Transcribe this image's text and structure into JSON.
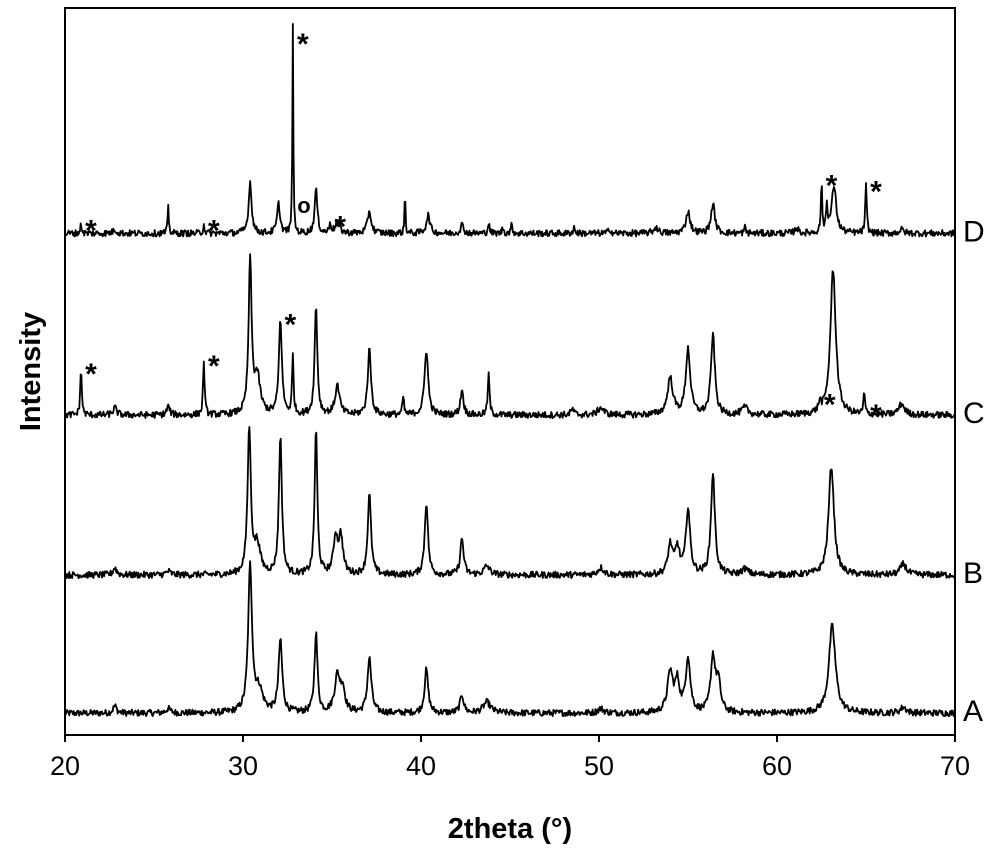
{
  "chart_data": {
    "type": "line",
    "xlabel": "2theta (°)",
    "ylabel": "Intensity",
    "xlim": [
      20,
      70
    ],
    "xticks": [
      20,
      30,
      40,
      50,
      60,
      70
    ],
    "y_ticks_shown": false,
    "grid": false,
    "legend": "none",
    "line_color": "#000000",
    "series": [
      {
        "name": "A",
        "baseline": 0.03,
        "peaks": [
          {
            "x": 22.8,
            "h": 0.01,
            "w": 0.12
          },
          {
            "x": 25.8,
            "h": 0.006,
            "w": 0.15
          },
          {
            "x": 30.4,
            "h": 0.2,
            "w": 0.13
          },
          {
            "x": 30.9,
            "h": 0.03,
            "w": 0.25
          },
          {
            "x": 32.1,
            "h": 0.1,
            "w": 0.12
          },
          {
            "x": 34.1,
            "h": 0.11,
            "w": 0.1
          },
          {
            "x": 35.3,
            "h": 0.05,
            "w": 0.18
          },
          {
            "x": 35.6,
            "h": 0.03,
            "w": 0.15
          },
          {
            "x": 37.1,
            "h": 0.075,
            "w": 0.13
          },
          {
            "x": 40.3,
            "h": 0.06,
            "w": 0.12
          },
          {
            "x": 42.3,
            "h": 0.025,
            "w": 0.12
          },
          {
            "x": 43.7,
            "h": 0.015,
            "w": 0.25
          },
          {
            "x": 50.1,
            "h": 0.006,
            "w": 0.2
          },
          {
            "x": 54.0,
            "h": 0.055,
            "w": 0.18
          },
          {
            "x": 54.4,
            "h": 0.04,
            "w": 0.15
          },
          {
            "x": 55.0,
            "h": 0.075,
            "w": 0.15
          },
          {
            "x": 56.4,
            "h": 0.075,
            "w": 0.15
          },
          {
            "x": 56.7,
            "h": 0.04,
            "w": 0.15
          },
          {
            "x": 63.1,
            "h": 0.12,
            "w": 0.22
          },
          {
            "x": 67.1,
            "h": 0.008,
            "w": 0.2
          }
        ]
      },
      {
        "name": "B",
        "baseline": 0.22,
        "peaks": [
          {
            "x": 22.8,
            "h": 0.01,
            "w": 0.12
          },
          {
            "x": 25.8,
            "h": 0.005,
            "w": 0.15
          },
          {
            "x": 30.35,
            "h": 0.2,
            "w": 0.11
          },
          {
            "x": 30.8,
            "h": 0.04,
            "w": 0.2
          },
          {
            "x": 32.1,
            "h": 0.19,
            "w": 0.1
          },
          {
            "x": 34.1,
            "h": 0.2,
            "w": 0.09
          },
          {
            "x": 35.2,
            "h": 0.05,
            "w": 0.14
          },
          {
            "x": 35.5,
            "h": 0.05,
            "w": 0.14
          },
          {
            "x": 37.1,
            "h": 0.11,
            "w": 0.11
          },
          {
            "x": 40.3,
            "h": 0.1,
            "w": 0.11
          },
          {
            "x": 42.3,
            "h": 0.05,
            "w": 0.11
          },
          {
            "x": 43.7,
            "h": 0.012,
            "w": 0.2
          },
          {
            "x": 50.1,
            "h": 0.01,
            "w": 0.2
          },
          {
            "x": 54.0,
            "h": 0.04,
            "w": 0.15
          },
          {
            "x": 54.4,
            "h": 0.035,
            "w": 0.15
          },
          {
            "x": 55.0,
            "h": 0.09,
            "w": 0.14
          },
          {
            "x": 56.4,
            "h": 0.14,
            "w": 0.13
          },
          {
            "x": 58.2,
            "h": 0.008,
            "w": 0.2
          },
          {
            "x": 63.05,
            "h": 0.15,
            "w": 0.18
          },
          {
            "x": 67.1,
            "h": 0.015,
            "w": 0.2
          }
        ]
      },
      {
        "name": "C",
        "baseline": 0.44,
        "peaks": [
          {
            "x": 20.9,
            "h": 0.065,
            "w": 0.05
          },
          {
            "x": 22.8,
            "h": 0.01,
            "w": 0.12
          },
          {
            "x": 25.8,
            "h": 0.012,
            "w": 0.1
          },
          {
            "x": 27.8,
            "h": 0.075,
            "w": 0.05
          },
          {
            "x": 30.4,
            "h": 0.21,
            "w": 0.1
          },
          {
            "x": 30.8,
            "h": 0.05,
            "w": 0.2
          },
          {
            "x": 32.1,
            "h": 0.13,
            "w": 0.1
          },
          {
            "x": 32.8,
            "h": 0.08,
            "w": 0.05
          },
          {
            "x": 34.1,
            "h": 0.15,
            "w": 0.09
          },
          {
            "x": 35.3,
            "h": 0.04,
            "w": 0.15
          },
          {
            "x": 37.1,
            "h": 0.09,
            "w": 0.11
          },
          {
            "x": 39.0,
            "h": 0.025,
            "w": 0.05
          },
          {
            "x": 40.3,
            "h": 0.09,
            "w": 0.12
          },
          {
            "x": 42.3,
            "h": 0.035,
            "w": 0.1
          },
          {
            "x": 43.8,
            "h": 0.055,
            "w": 0.06
          },
          {
            "x": 48.5,
            "h": 0.008,
            "w": 0.1
          },
          {
            "x": 50.1,
            "h": 0.01,
            "w": 0.2
          },
          {
            "x": 54.0,
            "h": 0.05,
            "w": 0.18
          },
          {
            "x": 55.0,
            "h": 0.09,
            "w": 0.15
          },
          {
            "x": 56.4,
            "h": 0.11,
            "w": 0.13
          },
          {
            "x": 58.2,
            "h": 0.01,
            "w": 0.2
          },
          {
            "x": 62.4,
            "h": 0.012,
            "w": 0.08
          },
          {
            "x": 63.15,
            "h": 0.2,
            "w": 0.18
          },
          {
            "x": 64.9,
            "h": 0.03,
            "w": 0.05
          },
          {
            "x": 67.0,
            "h": 0.015,
            "w": 0.2
          }
        ]
      },
      {
        "name": "D",
        "baseline": 0.69,
        "peaks": [
          {
            "x": 20.9,
            "h": 0.012,
            "w": 0.05
          },
          {
            "x": 22.8,
            "h": 0.005,
            "w": 0.12
          },
          {
            "x": 25.8,
            "h": 0.035,
            "w": 0.04
          },
          {
            "x": 27.8,
            "h": 0.012,
            "w": 0.05
          },
          {
            "x": 30.4,
            "h": 0.07,
            "w": 0.1
          },
          {
            "x": 32.0,
            "h": 0.04,
            "w": 0.1
          },
          {
            "x": 32.8,
            "h": 0.29,
            "w": 0.03
          },
          {
            "x": 34.1,
            "h": 0.06,
            "w": 0.09
          },
          {
            "x": 34.9,
            "h": 0.015,
            "w": 0.05
          },
          {
            "x": 35.3,
            "h": 0.015,
            "w": 0.15
          },
          {
            "x": 37.1,
            "h": 0.03,
            "w": 0.12
          },
          {
            "x": 39.1,
            "h": 0.06,
            "w": 0.03
          },
          {
            "x": 40.4,
            "h": 0.025,
            "w": 0.12
          },
          {
            "x": 42.3,
            "h": 0.012,
            "w": 0.1
          },
          {
            "x": 43.8,
            "h": 0.015,
            "w": 0.05
          },
          {
            "x": 44.6,
            "h": 0.008,
            "w": 0.05
          },
          {
            "x": 45.1,
            "h": 0.012,
            "w": 0.05
          },
          {
            "x": 48.6,
            "h": 0.008,
            "w": 0.06
          },
          {
            "x": 50.6,
            "h": 0.006,
            "w": 0.08
          },
          {
            "x": 53.2,
            "h": 0.008,
            "w": 0.15
          },
          {
            "x": 55.0,
            "h": 0.03,
            "w": 0.14
          },
          {
            "x": 56.4,
            "h": 0.04,
            "w": 0.13
          },
          {
            "x": 58.2,
            "h": 0.008,
            "w": 0.05
          },
          {
            "x": 61.1,
            "h": 0.008,
            "w": 0.1
          },
          {
            "x": 62.5,
            "h": 0.07,
            "w": 0.04
          },
          {
            "x": 62.8,
            "h": 0.035,
            "w": 0.06
          },
          {
            "x": 63.2,
            "h": 0.065,
            "w": 0.15
          },
          {
            "x": 65.0,
            "h": 0.065,
            "w": 0.05
          },
          {
            "x": 67.0,
            "h": 0.005,
            "w": 0.15
          }
        ]
      }
    ],
    "annotations": [
      {
        "text": "*",
        "series": "D",
        "x": 20.9
      },
      {
        "text": "*",
        "series": "D",
        "x": 27.8
      },
      {
        "text": "*",
        "series": "D",
        "x": 32.8
      },
      {
        "text": "o",
        "series": "D",
        "x": 33.2
      },
      {
        "text": "*",
        "series": "D",
        "x": 34.9
      },
      {
        "text": "*",
        "series": "D",
        "x": 62.5
      },
      {
        "text": "*",
        "series": "D",
        "x": 65.0
      },
      {
        "text": "*",
        "series": "C",
        "x": 20.9
      },
      {
        "text": "*",
        "series": "C",
        "x": 27.8
      },
      {
        "text": "*",
        "series": "C",
        "x": 32.1
      },
      {
        "text": "*",
        "series": "C",
        "x": 62.4
      },
      {
        "text": "*",
        "series": "C",
        "x": 65.0
      }
    ]
  }
}
